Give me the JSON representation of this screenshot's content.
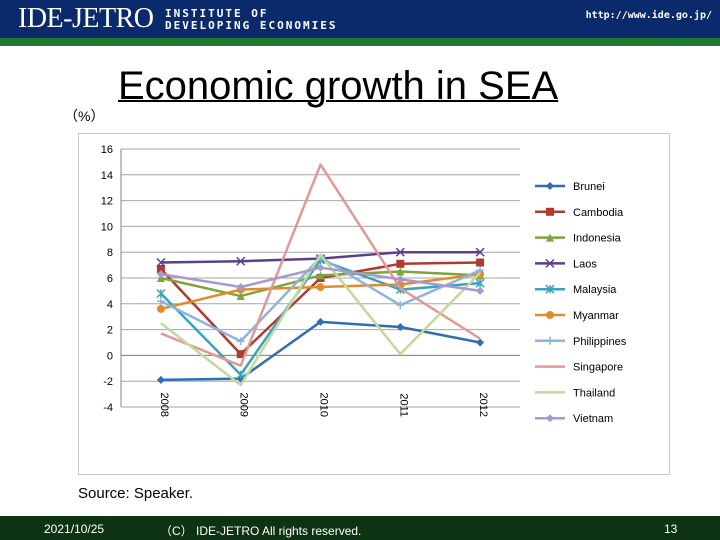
{
  "header": {
    "logo_text": "IDE-JETRO",
    "institute_line1": "INSTITUTE OF",
    "institute_line2": "DEVELOPING ECONOMIES",
    "url": "http://www.ide.go.jp/"
  },
  "slide": {
    "title": "Economic growth in SEA",
    "unit_label": "（%）",
    "source": "Source: Speaker."
  },
  "footer": {
    "date": "2021/10/25",
    "copyright": "（C） IDE-JETRO All rights reserved.",
    "page": "13"
  },
  "colors": {
    "header_bg": "#0b2a6b",
    "header_band": "#1f7a2e",
    "footer_bg": "#0d3312"
  },
  "chart_data": {
    "type": "line",
    "x": [
      "2008",
      "2009",
      "2010",
      "2011",
      "2012"
    ],
    "ylim": [
      -4,
      16
    ],
    "yticks": [
      -4,
      -2,
      0,
      2,
      4,
      6,
      8,
      10,
      12,
      14,
      16
    ],
    "grid": true,
    "legend_position": "right",
    "series": [
      {
        "name": "Brunei",
        "values": [
          -1.9,
          -1.8,
          2.6,
          2.2,
          1.0
        ],
        "color": "#2e6fb4",
        "marker": "diamond"
      },
      {
        "name": "Cambodia",
        "values": [
          6.7,
          0.1,
          6.0,
          7.1,
          7.2
        ],
        "color": "#b03a32",
        "marker": "square"
      },
      {
        "name": "Indonesia",
        "values": [
          6.0,
          4.6,
          6.2,
          6.5,
          6.2
        ],
        "color": "#7fa43c",
        "marker": "triangle"
      },
      {
        "name": "Laos",
        "values": [
          7.2,
          7.3,
          7.5,
          8.0,
          8.0
        ],
        "color": "#5b3f8c",
        "marker": "x"
      },
      {
        "name": "Malaysia",
        "values": [
          4.8,
          -1.5,
          7.4,
          5.1,
          5.6
        ],
        "color": "#3aa2bd",
        "marker": "asterisk"
      },
      {
        "name": "Myanmar",
        "values": [
          3.6,
          5.1,
          5.3,
          5.5,
          6.3
        ],
        "color": "#e58a2c",
        "marker": "circle"
      },
      {
        "name": "Philippines",
        "values": [
          4.2,
          1.1,
          7.6,
          3.9,
          6.6
        ],
        "color": "#8fb3dc",
        "marker": "plus"
      },
      {
        "name": "Singapore",
        "values": [
          1.7,
          -0.8,
          14.8,
          5.2,
          1.3
        ],
        "color": "#e09a96",
        "marker": "none"
      },
      {
        "name": "Thailand",
        "values": [
          2.5,
          -2.3,
          7.8,
          0.1,
          6.4
        ],
        "color": "#c3d89b",
        "marker": "none"
      },
      {
        "name": "Vietnam",
        "values": [
          6.3,
          5.3,
          6.8,
          5.9,
          5.0
        ],
        "color": "#a898cf",
        "marker": "diamond"
      }
    ]
  }
}
